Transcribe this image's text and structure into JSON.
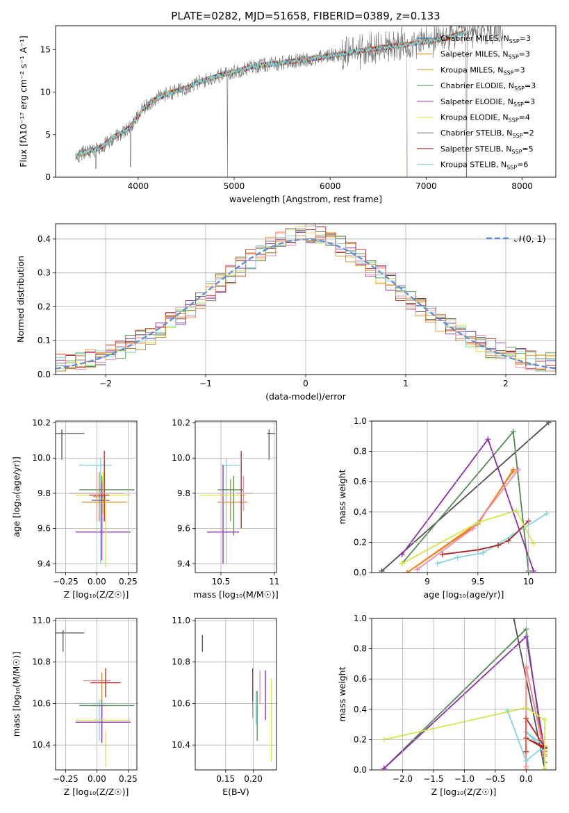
{
  "figure": {
    "title": "PLATE=0282, MJD=51658, FIBERID=0389, z=0.133"
  },
  "chart_data": [
    {
      "id": "spectrum",
      "type": "line",
      "xlabel": "wavelength [Angstrom, rest frame]",
      "ylabel": "Flux [fλ10⁻¹⁷ erg cm⁻² s⁻¹ A⁻¹]",
      "xlim": [
        3140,
        8350
      ],
      "ylim": [
        0,
        17.8
      ],
      "xticks": [
        4000,
        5000,
        6000,
        7000,
        8000
      ],
      "yticks": [
        0,
        5,
        10,
        15
      ],
      "grid": false,
      "legend_position": "right",
      "continuum": {
        "x": [
          3350,
          3450,
          3550,
          3650,
          3750,
          3850,
          3950,
          4050,
          4150,
          4300,
          4450,
          4600,
          4800,
          5000,
          5200,
          5400,
          5600,
          5800,
          6000,
          6200,
          6400,
          6600,
          6800,
          7000,
          7200,
          7300,
          7400
        ],
        "y": [
          2.4,
          3.0,
          3.2,
          3.8,
          4.8,
          5.3,
          6.3,
          8.0,
          9.0,
          9.8,
          10.3,
          11.0,
          11.8,
          12.4,
          13.0,
          13.3,
          13.6,
          13.9,
          14.3,
          14.6,
          15.0,
          15.3,
          15.6,
          15.9,
          16.3,
          16.7,
          17.0
        ]
      },
      "dips": [
        {
          "x": 4930,
          "y": 0
        },
        {
          "x": 7420,
          "y": 0
        },
        {
          "x": 3560,
          "y": 1.0
        },
        {
          "x": 3920,
          "y": 1.2
        }
      ],
      "series": [
        {
          "name": "Chabrier MILES, N_SSP=3",
          "color": "#1f77b4",
          "xmax": 7420
        },
        {
          "name": "Salpeter MILES, N_SSP=3",
          "color": "#ff7f0e",
          "xmax": 7420
        },
        {
          "name": "Kroupa MILES, N_SSP=3",
          "color": "#d2832c",
          "xmax": 7420
        },
        {
          "name": "Chabrier ELODIE, N_SSP=3",
          "color": "#4e8a4e",
          "xmax": 6800
        },
        {
          "name": "Salpeter ELODIE, N_SSP=3",
          "color": "#8e2aaf",
          "xmax": 6800
        },
        {
          "name": "Kroupa ELODIE, N_SSP=4",
          "color": "#d4e84a",
          "xmax": 6800
        },
        {
          "name": "Chabrier STELIB, N_SSP=2",
          "color": "#6e6e6e",
          "xmax": 7800
        },
        {
          "name": "Salpeter STELIB, N_SSP=5",
          "color": "#b22222",
          "xmax": 7420
        },
        {
          "name": "Kroupa STELIB, N_SSP=6",
          "color": "#7fd6dd",
          "xmax": 7420
        }
      ]
    },
    {
      "id": "residuals",
      "type": "line",
      "xlabel": "(data-model)/error",
      "ylabel": "Normed distribution",
      "xlim": [
        -2.5,
        2.5
      ],
      "ylim": [
        0,
        0.445
      ],
      "xticks": [
        -2,
        -1,
        0,
        1,
        2
      ],
      "yticks": [
        0.0,
        0.1,
        0.2,
        0.3,
        0.4
      ],
      "grid": true,
      "legend_position": "top-right",
      "gaussian": {
        "name": "𝒩(0, 1)",
        "mu": 0,
        "sigma": 1,
        "color": "#5b8fd8"
      },
      "hist_bin_width": 0.1,
      "hist_colors": [
        "#ff7f0e",
        "#8e2aaf",
        "#d4e84a",
        "#4e8a4e",
        "#6e6e6e",
        "#b22222",
        "#7fd6dd",
        "#f08bb0",
        "#d2832c"
      ]
    },
    {
      "id": "age_vs_Z",
      "type": "scatter",
      "xlabel": "Z [log₁₀(Z/Z☉)]",
      "ylabel": "age  [log₁₀(age/yr)]",
      "xlim": [
        -0.33,
        0.32
      ],
      "ylim": [
        9.35,
        10.21
      ],
      "xticks": [
        -0.25,
        0,
        0.25
      ],
      "xticklabels": [
        "−0.25",
        "0.00",
        "0.25"
      ],
      "yticks": [
        9.4,
        9.6,
        9.8,
        10.0,
        10.2
      ],
      "grid": true,
      "points": [
        {
          "x": 0.0,
          "xerr": 0.22,
          "y": 9.8,
          "yerr": 0.16,
          "color": "#f08bb0"
        },
        {
          "x": 0.02,
          "xerr": 0.05,
          "y": 9.78,
          "yerr": 0.14,
          "color": "#d2832c"
        },
        {
          "x": -0.01,
          "xerr": 0.13,
          "y": 9.96,
          "yerr": 0.0,
          "color": "#7fd6dd"
        },
        {
          "x": 0.03,
          "xerr": 0.0,
          "y": 9.7,
          "yerr": 0.3,
          "color": "#7fd6dd"
        },
        {
          "x": 0.08,
          "xerr": 0.22,
          "y": 9.82,
          "yerr": 0.0,
          "color": "#4e8a4e"
        },
        {
          "x": 0.05,
          "xerr": 0.22,
          "y": 9.79,
          "yerr": 0.02,
          "color": "#d4e84a"
        },
        {
          "x": 0.05,
          "xerr": 0.0,
          "y": 9.8,
          "yerr": 0.12,
          "color": "#d4e84a"
        },
        {
          "x": 0.03,
          "xerr": 0.07,
          "y": 9.76,
          "yerr": 0.0,
          "color": "#6e6e6e"
        },
        {
          "x": 0.04,
          "xerr": 0.0,
          "y": 9.73,
          "yerr": 0.17,
          "color": "#4e8a4e"
        },
        {
          "x": 0.05,
          "xerr": 0.22,
          "y": 9.58,
          "yerr": 0.0,
          "color": "#8e2aaf"
        },
        {
          "x": 0.04,
          "xerr": 0.0,
          "y": 9.64,
          "yerr": 0.22,
          "color": "#8e2aaf"
        },
        {
          "x": 0.02,
          "xerr": 0.08,
          "y": 9.79,
          "yerr": 0.0,
          "color": "#b22222"
        },
        {
          "x": 0.06,
          "xerr": 0.0,
          "y": 9.84,
          "yerr": 0.2,
          "color": "#b22222"
        },
        {
          "x": 0.06,
          "xerr": 0.18,
          "y": 9.75,
          "yerr": 0.0,
          "color": "#d2832c"
        },
        {
          "x": 0.07,
          "xerr": 0.0,
          "y": 9.58,
          "yerr": 0.2,
          "color": "#d4e84a"
        }
      ],
      "typical_error": {
        "x": -0.28,
        "xerr": 0.18,
        "y": 10.14,
        "yerr": 0.15,
        "color": "#555555"
      }
    },
    {
      "id": "age_vs_mass",
      "type": "scatter",
      "xlabel": "mass [log₁₀(M/M☉)]",
      "ylabel": "",
      "xlim": [
        10.26,
        11.02
      ],
      "ylim": [
        9.35,
        10.21
      ],
      "xticks": [
        10.5,
        11.0
      ],
      "yticks": [
        9.4,
        9.6,
        9.8,
        10.0,
        10.2
      ],
      "grid": true,
      "points": [
        {
          "x": 10.59,
          "xerr": 0.09,
          "y": 9.96,
          "yerr": 0.0,
          "color": "#7fd6dd"
        },
        {
          "x": 10.52,
          "xerr": 0.0,
          "y": 9.68,
          "yerr": 0.28,
          "color": "#8e2aaf"
        },
        {
          "x": 10.55,
          "xerr": 0.0,
          "y": 9.7,
          "yerr": 0.3,
          "color": "#7fd6dd"
        },
        {
          "x": 10.59,
          "xerr": 0.0,
          "y": 9.76,
          "yerr": 0.12,
          "color": "#d2832c"
        },
        {
          "x": 10.61,
          "xerr": 0.14,
          "y": 9.75,
          "yerr": 0.0,
          "color": "#d2832c"
        },
        {
          "x": 10.52,
          "xerr": 0.22,
          "y": 9.79,
          "yerr": 0.0,
          "color": "#d4e84a"
        },
        {
          "x": 10.59,
          "xerr": 0.12,
          "y": 9.82,
          "yerr": 0.0,
          "color": "#4e8a4e"
        },
        {
          "x": 10.62,
          "xerr": 0.0,
          "y": 9.73,
          "yerr": 0.17,
          "color": "#4e8a4e"
        },
        {
          "x": 10.52,
          "xerr": 0.15,
          "y": 9.58,
          "yerr": 0.0,
          "color": "#8e2aaf"
        },
        {
          "x": 10.69,
          "xerr": 0.0,
          "y": 9.82,
          "yerr": 0.22,
          "color": "#b22222"
        },
        {
          "x": 10.72,
          "xerr": 0.08,
          "y": 9.8,
          "yerr": 0.0,
          "color": "#f08bb0"
        },
        {
          "x": 10.71,
          "xerr": 0.0,
          "y": 9.8,
          "yerr": 0.1,
          "color": "#f08bb0"
        }
      ],
      "typical_error": {
        "x": 10.95,
        "xerr": 0.06,
        "y": 10.14,
        "yerr": 0.15,
        "color": "#555555"
      }
    },
    {
      "id": "massweight_vs_age",
      "type": "line",
      "xlabel": "age  [log₁₀(age/yr)]",
      "ylabel": "mass weight",
      "xlim": [
        8.45,
        10.27
      ],
      "ylim": [
        0,
        1.0
      ],
      "xticks": [
        9.0,
        9.5,
        10.0
      ],
      "yticks": [
        0.0,
        0.2,
        0.4,
        0.6,
        0.8,
        1.0
      ],
      "grid": true,
      "series": [
        {
          "color": "#4d4d4d",
          "x": [
            8.55,
            10.2
          ],
          "y": [
            0.01,
            0.99
          ]
        },
        {
          "color": "#4e8a4e",
          "x": [
            8.75,
            9.85,
            10.0
          ],
          "y": [
            0.06,
            0.93,
            0.01
          ]
        },
        {
          "color": "#8e2aaf",
          "x": [
            8.75,
            9.6,
            10.05
          ],
          "y": [
            0.12,
            0.88,
            0.01
          ]
        },
        {
          "color": "#d2832c",
          "x": [
            8.8,
            9.5,
            9.85
          ],
          "y": [
            0.0,
            0.32,
            0.68
          ]
        },
        {
          "color": "#ff7f0e",
          "x": [
            8.8,
            9.5,
            9.85
          ],
          "y": [
            0.0,
            0.33,
            0.67
          ]
        },
        {
          "color": "#f08bb0",
          "x": [
            8.9,
            9.45,
            9.9
          ],
          "y": [
            0.02,
            0.29,
            0.68
          ]
        },
        {
          "color": "#7fd6dd",
          "x": [
            9.1,
            9.3,
            9.55,
            9.85,
            10.18
          ],
          "y": [
            0.06,
            0.1,
            0.13,
            0.25,
            0.39
          ]
        },
        {
          "color": "#b22222",
          "x": [
            9.15,
            9.5,
            9.7,
            9.8,
            10.0
          ],
          "y": [
            0.12,
            0.15,
            0.18,
            0.21,
            0.34
          ]
        },
        {
          "color": "#d4e84a",
          "x": [
            8.75,
            9.5,
            9.88,
            10.05
          ],
          "y": [
            0.06,
            0.33,
            0.41,
            0.19
          ]
        }
      ]
    },
    {
      "id": "mass_vs_Z",
      "type": "scatter",
      "xlabel": "Z [log₁₀(Z/Z☉)]",
      "ylabel": "mass [log₁₀(M/M☉)]",
      "xlim": [
        -0.33,
        0.32
      ],
      "ylim": [
        10.28,
        11.01
      ],
      "xticks": [
        -0.25,
        0,
        0.25
      ],
      "xticklabels": [
        "−0.25",
        "0.00",
        "0.25"
      ],
      "yticks": [
        10.4,
        10.6,
        10.8,
        11.0
      ],
      "grid": true,
      "points": [
        {
          "x": 0.0,
          "xerr": 0.11,
          "y": 10.71,
          "yerr": 0.0,
          "color": "#f08bb0"
        },
        {
          "x": 0.07,
          "xerr": 0.12,
          "y": 10.7,
          "yerr": 0.07,
          "color": "#b22222"
        },
        {
          "x": 0.04,
          "xerr": 0.0,
          "y": 10.63,
          "yerr": 0.12,
          "color": "#d2832c"
        },
        {
          "x": -0.03,
          "xerr": 0.15,
          "y": 10.6,
          "yerr": 0.0,
          "color": "#7fd6dd"
        },
        {
          "x": 0.08,
          "xerr": 0.22,
          "y": 10.59,
          "yerr": 0.0,
          "color": "#4e8a4e"
        },
        {
          "x": 0.02,
          "xerr": 0.0,
          "y": 10.52,
          "yerr": 0.1,
          "color": "#7fd6dd"
        },
        {
          "x": 0.04,
          "xerr": 0.0,
          "y": 10.52,
          "yerr": 0.1,
          "color": "#4e8a4e"
        },
        {
          "x": 0.04,
          "xerr": 0.0,
          "y": 10.5,
          "yerr": 0.09,
          "color": "#8e2aaf"
        },
        {
          "x": 0.07,
          "xerr": 0.0,
          "y": 10.38,
          "yerr": 0.09,
          "color": "#d4e84a"
        },
        {
          "x": 0.05,
          "xerr": 0.22,
          "y": 10.52,
          "yerr": 0.0,
          "color": "#d4e84a"
        },
        {
          "x": 0.05,
          "xerr": 0.22,
          "y": 10.51,
          "yerr": 0.0,
          "color": "#8e2aaf"
        },
        {
          "x": 0.02,
          "xerr": 0.06,
          "y": 10.59,
          "yerr": 0.0,
          "color": "#6e6e6e"
        }
      ],
      "typical_error": {
        "x": -0.27,
        "xerr": 0.17,
        "y": 10.94,
        "yerr": 0.09,
        "color": "#555555"
      }
    },
    {
      "id": "mass_vs_ebv",
      "type": "scatter",
      "xlabel": "E(B-V)",
      "ylabel": "",
      "xlim": [
        0.095,
        0.242
      ],
      "ylim": [
        10.28,
        11.01
      ],
      "xticks": [
        0.15,
        0.2
      ],
      "xticklabels": [
        "0.15",
        "0.20"
      ],
      "yticks": [
        10.4,
        10.6,
        10.8,
        11.0
      ],
      "grid": true,
      "points": [
        {
          "x": 0.199,
          "xerr": 0.0,
          "y": 10.65,
          "yerr": 0.12,
          "color": "#d2832c"
        },
        {
          "x": 0.199,
          "xerr": 0.0,
          "y": 10.69,
          "yerr": 0.08,
          "color": "#b22222"
        },
        {
          "x": 0.205,
          "xerr": 0.0,
          "y": 10.58,
          "yerr": 0.08,
          "color": "#7fd6dd"
        },
        {
          "x": 0.207,
          "xerr": 0.0,
          "y": 10.54,
          "yerr": 0.12,
          "color": "#4e8a4e"
        },
        {
          "x": 0.212,
          "xerr": 0.0,
          "y": 10.68,
          "yerr": 0.08,
          "color": "#f08bb0"
        },
        {
          "x": 0.222,
          "xerr": 0.0,
          "y": 10.64,
          "yerr": 0.12,
          "color": "#8e2aaf"
        },
        {
          "x": 0.233,
          "xerr": 0.0,
          "y": 10.52,
          "yerr": 0.2,
          "color": "#d4e84a"
        }
      ],
      "typical_error": {
        "x": 0.108,
        "xerr": 0.0,
        "y": 10.92,
        "yerr": 0.07,
        "color": "#555555"
      }
    },
    {
      "id": "massweight_vs_Z",
      "type": "line",
      "xlabel": "Z [log₁₀(Z/Z☉)]",
      "ylabel": "mass weight",
      "xlim": [
        -2.5,
        0.48
      ],
      "ylim": [
        0,
        1.0
      ],
      "xticks": [
        -2.0,
        -1.5,
        -1.0,
        -0.5,
        0.0
      ],
      "xticklabels": [
        "−2.0",
        "−1.5",
        "−1.0",
        "−0.5",
        "0.0"
      ],
      "yticks": [
        0.0,
        0.2,
        0.4,
        0.6,
        0.8,
        1.0
      ],
      "grid": true,
      "series": [
        {
          "color": "#4d4d4d",
          "x": [
            -0.2,
            0.3
          ],
          "y": [
            1.0,
            0.01
          ]
        },
        {
          "color": "#4e8a4e",
          "x": [
            -2.3,
            0.0,
            0.3
          ],
          "y": [
            0.01,
            0.93,
            0.05
          ]
        },
        {
          "color": "#8e2aaf",
          "x": [
            -2.3,
            0.0,
            0.3
          ],
          "y": [
            0.01,
            0.88,
            0.12
          ]
        },
        {
          "color": "#d2832c",
          "x": [
            0.0,
            0.0,
            0.3
          ],
          "y": [
            0.0,
            0.68,
            0.1
          ]
        },
        {
          "color": "#ff7f0e",
          "x": [
            0.0,
            0.0,
            0.3
          ],
          "y": [
            0.0,
            0.67,
            0.12
          ]
        },
        {
          "color": "#f08bb0",
          "x": [
            0.0,
            0.0,
            0.3
          ],
          "y": [
            0.02,
            0.68,
            0.09
          ]
        },
        {
          "color": "#7fd6dd",
          "x": [
            -0.3,
            0.0,
            0.3,
            0.0,
            0.3
          ],
          "y": [
            0.39,
            0.06,
            0.16,
            0.25,
            0.13
          ]
        },
        {
          "color": "#b22222",
          "x": [
            0.0,
            0.0,
            0.3,
            0.0,
            0.3
          ],
          "y": [
            0.12,
            0.34,
            0.15,
            0.21,
            0.14
          ]
        },
        {
          "color": "#d4e84a",
          "x": [
            -2.3,
            0.0,
            0.3,
            0.3
          ],
          "y": [
            0.2,
            0.41,
            0.33,
            0.01
          ]
        }
      ]
    }
  ]
}
